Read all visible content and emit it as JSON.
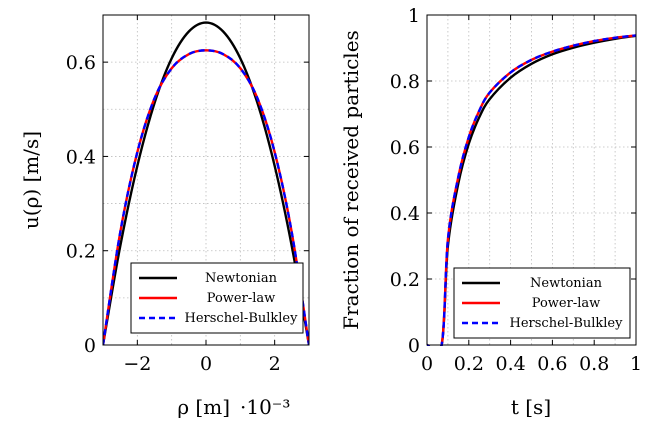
{
  "chart_data": [
    {
      "type": "line",
      "xlabel": "ρ [m]",
      "ylabel": "u(ρ) [m/s]",
      "x_scale_label": "·10⁻³",
      "xlim": [
        -3,
        3
      ],
      "ylim": [
        0,
        0.7
      ],
      "xticks": [
        "−2",
        "0",
        "2"
      ],
      "yticks": [
        "0",
        "0.2",
        "0.4",
        "0.6"
      ],
      "grid": true,
      "legend_position": "bottom-right",
      "x": [
        -3.0,
        -2.5,
        -2.0,
        -1.5,
        -1.0,
        -0.5,
        0.0,
        0.5,
        1.0,
        1.5,
        2.0,
        2.5,
        3.0
      ],
      "series": [
        {
          "name": "Newtonian",
          "color": "#000000",
          "dash": "solid",
          "values": [
            0.0,
            0.209,
            0.38,
            0.513,
            0.608,
            0.665,
            0.684,
            0.665,
            0.608,
            0.513,
            0.38,
            0.209,
            0.0
          ]
        },
        {
          "name": "Power-law",
          "color": "#ff0000",
          "dash": "solid",
          "values": [
            0.0,
            0.238,
            0.409,
            0.523,
            0.587,
            0.617,
            0.625,
            0.617,
            0.587,
            0.523,
            0.409,
            0.238,
            0.0
          ]
        },
        {
          "name": "Herschel-Bulkley",
          "color": "#0000ff",
          "dash": "dashed",
          "values": [
            0.0,
            0.238,
            0.409,
            0.523,
            0.587,
            0.617,
            0.625,
            0.617,
            0.587,
            0.523,
            0.409,
            0.238,
            0.0
          ]
        }
      ]
    },
    {
      "type": "line",
      "xlabel": "t [s]",
      "ylabel": "Fraction of received particles",
      "xlim": [
        0,
        1
      ],
      "ylim": [
        0,
        1
      ],
      "xticks": [
        "0",
        "0.2",
        "0.4",
        "0.6",
        "0.8",
        "1"
      ],
      "yticks": [
        "0",
        "0.2",
        "0.4",
        "0.6",
        "0.8",
        "1"
      ],
      "grid": true,
      "legend_position": "bottom-right",
      "x": [
        0.0,
        0.07,
        0.1,
        0.15,
        0.2,
        0.25,
        0.3,
        0.4,
        0.5,
        0.6,
        0.7,
        0.8,
        0.9,
        1.0
      ],
      "series": [
        {
          "name": "Newtonian",
          "color": "#000000",
          "dash": "solid",
          "values": [
            0.0,
            0.0,
            0.3,
            0.49,
            0.61,
            0.69,
            0.745,
            0.81,
            0.852,
            0.881,
            0.901,
            0.916,
            0.928,
            0.937
          ]
        },
        {
          "name": "Power-law",
          "color": "#ff0000",
          "dash": "solid",
          "values": [
            0.0,
            0.0,
            0.32,
            0.51,
            0.63,
            0.71,
            0.765,
            0.826,
            0.864,
            0.889,
            0.907,
            0.921,
            0.931,
            0.938
          ]
        },
        {
          "name": "Herschel-Bulkley",
          "color": "#0000ff",
          "dash": "dashed",
          "values": [
            0.0,
            0.0,
            0.32,
            0.51,
            0.63,
            0.71,
            0.765,
            0.826,
            0.864,
            0.889,
            0.907,
            0.921,
            0.931,
            0.938
          ]
        }
      ]
    }
  ]
}
